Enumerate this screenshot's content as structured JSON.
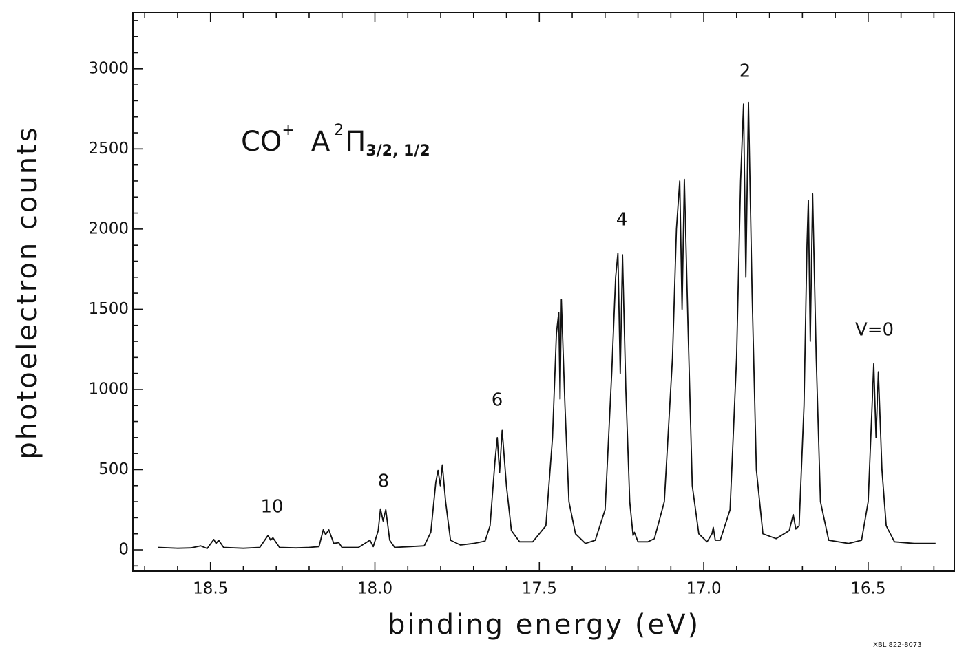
{
  "chart_data": {
    "type": "line",
    "x_label": "binding energy (eV)",
    "y_label": "photoelectron counts",
    "annotation": {
      "molecule": "CO",
      "charge": "+",
      "state": "A",
      "multiplicity": "2",
      "term": "Π",
      "components": "3/2, 1/2"
    },
    "peak_labels": [
      "10",
      "8",
      "6",
      "4",
      "2",
      "V=0"
    ],
    "figure_id": "XBL 822-8073",
    "color": "#111111",
    "xlim": [
      18.736,
      16.238
    ],
    "ylim": [
      -133,
      3351
    ],
    "xticks": [
      18.5,
      {
        "value": 18,
        "label": "18.0"
      },
      17.5,
      {
        "value": 17,
        "label": "17.0"
      },
      16.5
    ],
    "xminorticks": [
      18.7,
      18.6,
      18.4,
      18.3,
      18.2,
      18.1,
      17.9,
      17.8,
      17.7,
      17.6,
      17.4,
      17.3,
      17.2,
      17.1,
      16.9,
      16.8,
      16.7,
      16.6,
      16.4,
      16.3
    ],
    "yticks": [
      0,
      500,
      1000,
      1500,
      2000,
      2500,
      3000
    ],
    "yminorticks": [
      -100,
      100,
      200,
      300,
      400,
      600,
      700,
      800,
      900,
      1100,
      1200,
      1300,
      1400,
      1600,
      1700,
      1800,
      1900,
      2100,
      2200,
      2300,
      2400,
      2600,
      2700,
      2800,
      2900,
      3100,
      3200,
      3300
    ],
    "x": [
      18.66,
      18.6,
      18.56,
      18.53,
      18.51,
      18.49,
      18.483,
      18.475,
      18.46,
      18.4,
      18.35,
      18.325,
      18.317,
      18.31,
      18.29,
      18.24,
      18.2,
      18.17,
      18.157,
      18.15,
      18.14,
      18.125,
      18.11,
      18.1,
      18.05,
      18.015,
      18.005,
      17.99,
      17.983,
      17.975,
      17.967,
      17.955,
      17.94,
      17.893,
      17.85,
      17.83,
      17.815,
      17.808,
      17.801,
      17.795,
      17.785,
      17.77,
      17.74,
      17.7,
      17.665,
      17.65,
      17.635,
      17.628,
      17.621,
      17.613,
      17.6,
      17.585,
      17.56,
      17.52,
      17.48,
      17.46,
      17.448,
      17.441,
      17.437,
      17.433,
      17.422,
      17.41,
      17.39,
      17.36,
      17.33,
      17.3,
      17.28,
      17.268,
      17.261,
      17.254,
      17.247,
      17.237,
      17.225,
      17.215,
      17.211,
      17.2,
      17.17,
      17.15,
      17.12,
      17.095,
      17.083,
      17.073,
      17.066,
      17.059,
      17.048,
      17.035,
      17.015,
      16.99,
      16.975,
      16.971,
      16.965,
      16.95,
      16.92,
      16.9,
      16.888,
      16.879,
      16.872,
      16.864,
      16.853,
      16.84,
      16.82,
      16.78,
      16.74,
      16.728,
      16.72,
      16.71,
      16.695,
      16.686,
      16.682,
      16.676,
      16.669,
      16.658,
      16.645,
      16.62,
      16.56,
      16.52,
      16.5,
      16.488,
      16.483,
      16.476,
      16.469,
      16.458,
      16.445,
      16.42,
      16.36,
      16.295
    ],
    "values": [
      15,
      10,
      12,
      25,
      8,
      65,
      40,
      60,
      15,
      10,
      15,
      90,
      60,
      75,
      15,
      12,
      15,
      20,
      125,
      95,
      125,
      40,
      45,
      15,
      15,
      60,
      20,
      120,
      255,
      180,
      250,
      60,
      15,
      20,
      25,
      110,
      420,
      495,
      400,
      530,
      300,
      60,
      30,
      40,
      55,
      150,
      550,
      700,
      480,
      745,
      400,
      120,
      50,
      50,
      150,
      700,
      1350,
      1480,
      940,
      1560,
      900,
      300,
      100,
      40,
      60,
      250,
      1100,
      1700,
      1850,
      1100,
      1840,
      1000,
      300,
      90,
      110,
      50,
      50,
      70,
      300,
      1200,
      2000,
      2300,
      1500,
      2310,
      1400,
      400,
      100,
      50,
      100,
      140,
      60,
      60,
      250,
      1200,
      2300,
      2780,
      1700,
      2790,
      1600,
      500,
      100,
      70,
      120,
      220,
      130,
      150,
      900,
      1900,
      2180,
      1300,
      2220,
      1200,
      300,
      60,
      40,
      60,
      300,
      900,
      1160,
      700,
      1110,
      500,
      150,
      50,
      40,
      40
    ]
  }
}
